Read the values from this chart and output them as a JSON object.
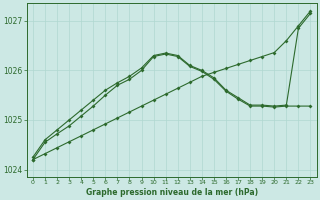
{
  "x": [
    0,
    1,
    2,
    3,
    4,
    5,
    6,
    7,
    8,
    9,
    10,
    11,
    12,
    13,
    14,
    15,
    16,
    17,
    18,
    19,
    20,
    21,
    22,
    23
  ],
  "line_straight": [
    1024.2,
    1024.32,
    1024.44,
    1024.56,
    1024.68,
    1024.8,
    1024.92,
    1025.04,
    1025.16,
    1025.28,
    1025.4,
    1025.52,
    1025.64,
    1025.76,
    1025.88,
    1025.96,
    1026.04,
    1026.12,
    1026.2,
    1026.28,
    1026.36,
    1026.6,
    1026.9,
    1027.2
  ],
  "line_curve1": [
    1024.25,
    1024.6,
    1024.8,
    1025.0,
    1025.2,
    1025.4,
    1025.6,
    1025.75,
    1025.88,
    1026.05,
    1026.3,
    1026.35,
    1026.3,
    1026.1,
    1026.0,
    1025.85,
    1025.6,
    1025.45,
    1025.3,
    1025.3,
    1025.28,
    1025.3,
    1026.85,
    1027.15
  ],
  "line_curve2": [
    1024.2,
    1024.55,
    1024.72,
    1024.88,
    1025.08,
    1025.28,
    1025.5,
    1025.7,
    1025.82,
    1026.0,
    1026.28,
    1026.33,
    1026.28,
    1026.08,
    1025.98,
    1025.82,
    1025.58,
    1025.42,
    1025.28,
    1025.28,
    1025.26,
    1025.28,
    1025.28,
    1025.28
  ],
  "color_main": "#2d6a2d",
  "bg_color": "#cce8e4",
  "grid_color": "#b0d8d0",
  "xlabel": "Graphe pression niveau de la mer (hPa)",
  "ylim": [
    1023.85,
    1027.35
  ],
  "yticks": [
    1024,
    1025,
    1026,
    1027
  ],
  "xticks": [
    0,
    1,
    2,
    3,
    4,
    5,
    6,
    7,
    8,
    9,
    10,
    11,
    12,
    13,
    14,
    15,
    16,
    17,
    18,
    19,
    20,
    21,
    22,
    23
  ],
  "title_color": "#2d6a2d"
}
